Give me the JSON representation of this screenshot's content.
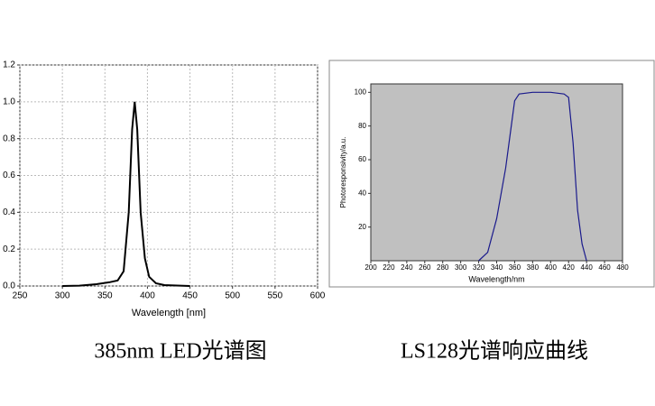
{
  "chart_data": [
    {
      "type": "line",
      "caption": "385nm LED光谱图",
      "xlabel": "Wavelength [nm]",
      "x": [
        300,
        320,
        340,
        355,
        365,
        372,
        378,
        382,
        385,
        388,
        392,
        397,
        402,
        410,
        420,
        450
      ],
      "series": [
        {
          "color": "#000000",
          "values": [
            0,
            0.002,
            0.01,
            0.02,
            0.03,
            0.08,
            0.4,
            0.85,
            1.0,
            0.85,
            0.4,
            0.15,
            0.05,
            0.015,
            0.005,
            0
          ]
        }
      ],
      "xlim": [
        250,
        600
      ],
      "xticks": [
        250,
        300,
        350,
        400,
        450,
        500,
        550,
        600
      ],
      "ylim": [
        0,
        1.2
      ],
      "yticks": [
        {
          "value": 0,
          "label": "0.0"
        },
        0.2,
        0.4,
        0.6,
        0.8,
        {
          "value": 1,
          "label": "1.0"
        },
        1.2
      ],
      "grid": true
    },
    {
      "type": "line",
      "caption": "LS128光谱响应曲线",
      "xlabel": "Wavelength/nm",
      "ylabel": "Photoresponsivity/a.u.",
      "x": [
        320,
        330,
        340,
        350,
        355,
        360,
        365,
        380,
        400,
        415,
        420,
        425,
        430,
        435,
        440
      ],
      "series": [
        {
          "color": "#1a1a8c",
          "values": [
            0,
            5,
            25,
            55,
            75,
            95,
            99,
            100,
            100,
            99,
            97,
            70,
            30,
            10,
            0
          ]
        }
      ],
      "xlim": [
        200,
        480
      ],
      "xticks": [
        200,
        220,
        240,
        260,
        280,
        300,
        320,
        340,
        360,
        380,
        400,
        420,
        440,
        460,
        480
      ],
      "ylim": [
        0,
        105
      ],
      "yticks": [
        20,
        40,
        60,
        80,
        100
      ],
      "grid": false,
      "background": "#c0c0c0"
    }
  ]
}
